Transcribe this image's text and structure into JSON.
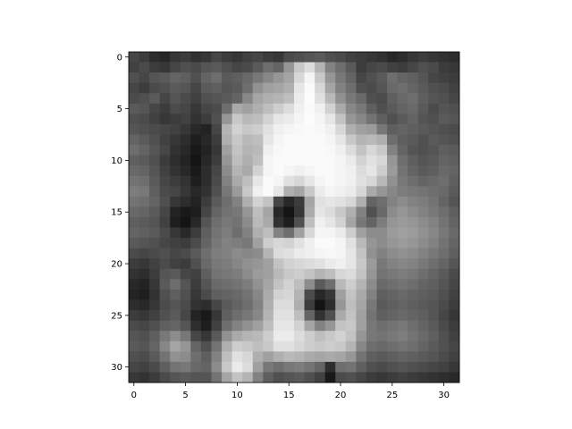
{
  "chart_data": {
    "type": "heatmap",
    "colormap": "gray",
    "value_range": [
      0,
      255
    ],
    "rows": 32,
    "cols": 32,
    "x_ticks": [
      0,
      5,
      10,
      15,
      20,
      25,
      30
    ],
    "y_ticks": [
      0,
      5,
      10,
      15,
      20,
      25,
      30
    ],
    "xlim": [
      -0.5,
      31.5
    ],
    "ylim": [
      31.5,
      -0.5
    ],
    "grid": false,
    "grid_values": [
      [
        70,
        60,
        45,
        40,
        55,
        60,
        50,
        55,
        70,
        60,
        55,
        65,
        70,
        60,
        55,
        75,
        80,
        85,
        90,
        80,
        75,
        65,
        60,
        55,
        50,
        40,
        45,
        55,
        60,
        55,
        50,
        45
      ],
      [
        65,
        75,
        60,
        55,
        70,
        80,
        75,
        85,
        90,
        80,
        70,
        75,
        90,
        110,
        100,
        150,
        200,
        220,
        180,
        130,
        110,
        90,
        60,
        70,
        75,
        65,
        60,
        70,
        80,
        75,
        60,
        55
      ],
      [
        80,
        70,
        85,
        90,
        100,
        95,
        80,
        100,
        110,
        90,
        95,
        105,
        120,
        135,
        150,
        165,
        215,
        245,
        200,
        150,
        120,
        100,
        70,
        80,
        90,
        110,
        100,
        95,
        85,
        70,
        65,
        60
      ],
      [
        70,
        60,
        75,
        80,
        90,
        85,
        70,
        90,
        95,
        85,
        90,
        110,
        145,
        160,
        165,
        175,
        230,
        250,
        215,
        165,
        130,
        110,
        80,
        75,
        85,
        105,
        110,
        100,
        90,
        80,
        75,
        65
      ],
      [
        75,
        80,
        90,
        70,
        85,
        75,
        65,
        80,
        85,
        90,
        100,
        135,
        165,
        175,
        180,
        190,
        235,
        252,
        225,
        185,
        145,
        120,
        105,
        80,
        75,
        95,
        105,
        110,
        95,
        85,
        80,
        70
      ],
      [
        90,
        85,
        70,
        60,
        75,
        70,
        55,
        70,
        75,
        110,
        170,
        160,
        175,
        190,
        205,
        220,
        240,
        250,
        240,
        210,
        170,
        135,
        120,
        95,
        80,
        90,
        100,
        105,
        90,
        75,
        85,
        80
      ],
      [
        80,
        75,
        65,
        55,
        60,
        65,
        50,
        60,
        80,
        150,
        200,
        185,
        190,
        210,
        230,
        235,
        245,
        252,
        245,
        230,
        195,
        150,
        135,
        115,
        95,
        80,
        90,
        100,
        85,
        80,
        90,
        85
      ],
      [
        85,
        80,
        75,
        70,
        65,
        55,
        40,
        35,
        70,
        180,
        210,
        200,
        205,
        225,
        240,
        245,
        248,
        250,
        248,
        240,
        215,
        175,
        160,
        155,
        120,
        95,
        100,
        95,
        90,
        85,
        80,
        75
      ],
      [
        100,
        90,
        80,
        65,
        55,
        45,
        30,
        40,
        60,
        175,
        200,
        185,
        190,
        230,
        245,
        250,
        250,
        250,
        250,
        245,
        230,
        200,
        180,
        185,
        175,
        110,
        95,
        90,
        80,
        90,
        85,
        80
      ],
      [
        110,
        100,
        85,
        70,
        50,
        40,
        25,
        35,
        55,
        160,
        195,
        180,
        185,
        240,
        248,
        250,
        250,
        250,
        250,
        248,
        240,
        220,
        195,
        215,
        200,
        130,
        100,
        85,
        80,
        85,
        95,
        90
      ],
      [
        95,
        90,
        80,
        60,
        45,
        35,
        20,
        40,
        60,
        150,
        190,
        175,
        190,
        245,
        250,
        250,
        250,
        250,
        250,
        250,
        245,
        235,
        210,
        225,
        215,
        150,
        110,
        95,
        85,
        90,
        100,
        95
      ],
      [
        105,
        100,
        85,
        65,
        50,
        40,
        25,
        45,
        70,
        140,
        180,
        170,
        210,
        245,
        250,
        245,
        240,
        245,
        250,
        250,
        245,
        240,
        220,
        230,
        205,
        155,
        115,
        100,
        90,
        95,
        105,
        100
      ],
      [
        115,
        110,
        90,
        70,
        60,
        50,
        30,
        45,
        75,
        130,
        170,
        190,
        230,
        250,
        245,
        225,
        215,
        230,
        245,
        250,
        245,
        240,
        225,
        215,
        185,
        145,
        120,
        110,
        100,
        105,
        110,
        95
      ],
      [
        125,
        120,
        95,
        75,
        70,
        55,
        40,
        50,
        80,
        120,
        155,
        200,
        240,
        250,
        230,
        175,
        165,
        200,
        235,
        245,
        240,
        235,
        215,
        170,
        150,
        135,
        125,
        120,
        115,
        110,
        105,
        90
      ],
      [
        115,
        110,
        100,
        80,
        55,
        45,
        35,
        60,
        90,
        110,
        130,
        175,
        210,
        195,
        70,
        40,
        60,
        165,
        225,
        230,
        225,
        215,
        175,
        100,
        110,
        130,
        140,
        130,
        125,
        115,
        100,
        85
      ],
      [
        105,
        100,
        90,
        70,
        35,
        25,
        30,
        70,
        100,
        115,
        120,
        150,
        190,
        165,
        40,
        20,
        55,
        170,
        230,
        220,
        200,
        175,
        130,
        80,
        105,
        140,
        150,
        140,
        130,
        120,
        110,
        95
      ],
      [
        95,
        90,
        85,
        65,
        30,
        20,
        40,
        85,
        110,
        120,
        115,
        140,
        185,
        170,
        50,
        30,
        80,
        190,
        240,
        230,
        210,
        165,
        120,
        100,
        125,
        150,
        155,
        150,
        140,
        130,
        115,
        100
      ],
      [
        100,
        95,
        90,
        75,
        55,
        40,
        60,
        95,
        115,
        125,
        110,
        130,
        175,
        190,
        130,
        110,
        160,
        215,
        245,
        245,
        235,
        205,
        160,
        140,
        140,
        155,
        160,
        155,
        145,
        135,
        120,
        105
      ],
      [
        90,
        85,
        80,
        70,
        65,
        60,
        75,
        100,
        120,
        130,
        125,
        120,
        160,
        205,
        215,
        210,
        225,
        240,
        250,
        250,
        245,
        225,
        185,
        150,
        140,
        150,
        155,
        150,
        140,
        130,
        115,
        100
      ],
      [
        75,
        70,
        75,
        80,
        70,
        75,
        90,
        110,
        125,
        130,
        140,
        135,
        140,
        180,
        220,
        225,
        235,
        240,
        245,
        248,
        245,
        230,
        195,
        145,
        130,
        140,
        145,
        140,
        130,
        120,
        110,
        95
      ],
      [
        60,
        55,
        65,
        75,
        65,
        60,
        80,
        105,
        120,
        125,
        135,
        145,
        150,
        160,
        195,
        210,
        215,
        220,
        225,
        235,
        240,
        230,
        200,
        155,
        120,
        130,
        135,
        130,
        120,
        110,
        100,
        85
      ],
      [
        50,
        45,
        60,
        85,
        90,
        70,
        65,
        95,
        115,
        120,
        125,
        140,
        155,
        160,
        185,
        200,
        205,
        195,
        180,
        190,
        215,
        220,
        195,
        150,
        115,
        120,
        125,
        120,
        110,
        100,
        90,
        75
      ],
      [
        40,
        35,
        55,
        90,
        110,
        85,
        60,
        85,
        105,
        110,
        115,
        125,
        145,
        165,
        195,
        210,
        190,
        140,
        90,
        110,
        185,
        205,
        180,
        140,
        105,
        110,
        115,
        110,
        100,
        95,
        85,
        70
      ],
      [
        35,
        30,
        50,
        80,
        95,
        80,
        55,
        75,
        95,
        100,
        105,
        115,
        135,
        170,
        210,
        215,
        180,
        75,
        40,
        55,
        160,
        195,
        170,
        130,
        95,
        100,
        105,
        100,
        95,
        90,
        80,
        65
      ],
      [
        45,
        40,
        55,
        75,
        85,
        75,
        50,
        45,
        70,
        90,
        100,
        110,
        130,
        175,
        220,
        220,
        175,
        60,
        20,
        45,
        150,
        190,
        165,
        120,
        90,
        95,
        100,
        95,
        90,
        85,
        75,
        60
      ],
      [
        60,
        55,
        65,
        80,
        90,
        70,
        35,
        25,
        55,
        95,
        110,
        120,
        135,
        180,
        225,
        225,
        190,
        100,
        50,
        80,
        170,
        195,
        160,
        115,
        95,
        100,
        105,
        100,
        95,
        85,
        70,
        55
      ],
      [
        75,
        70,
        80,
        95,
        100,
        85,
        45,
        30,
        65,
        110,
        130,
        145,
        160,
        190,
        230,
        230,
        210,
        165,
        130,
        150,
        195,
        200,
        160,
        120,
        110,
        115,
        120,
        110,
        100,
        90,
        75,
        60
      ],
      [
        85,
        80,
        95,
        120,
        140,
        120,
        70,
        55,
        90,
        145,
        170,
        180,
        185,
        205,
        235,
        235,
        220,
        205,
        190,
        200,
        210,
        195,
        150,
        120,
        115,
        120,
        125,
        115,
        105,
        95,
        80,
        65
      ],
      [
        90,
        85,
        100,
        135,
        165,
        150,
        100,
        80,
        115,
        175,
        205,
        200,
        190,
        200,
        225,
        225,
        215,
        205,
        200,
        205,
        200,
        180,
        135,
        110,
        105,
        110,
        115,
        110,
        100,
        90,
        80,
        70
      ],
      [
        80,
        75,
        90,
        115,
        145,
        140,
        110,
        95,
        130,
        190,
        225,
        215,
        175,
        160,
        175,
        185,
        180,
        170,
        165,
        170,
        165,
        150,
        115,
        95,
        90,
        95,
        100,
        95,
        90,
        85,
        75,
        65
      ],
      [
        70,
        65,
        75,
        95,
        115,
        120,
        105,
        100,
        140,
        200,
        235,
        220,
        160,
        120,
        110,
        120,
        125,
        115,
        100,
        45,
        110,
        115,
        95,
        80,
        75,
        80,
        85,
        80,
        75,
        70,
        65,
        55
      ],
      [
        55,
        50,
        60,
        75,
        85,
        90,
        85,
        85,
        115,
        165,
        195,
        180,
        130,
        95,
        80,
        85,
        90,
        80,
        65,
        25,
        75,
        80,
        70,
        60,
        55,
        60,
        65,
        60,
        55,
        50,
        45,
        40
      ]
    ]
  }
}
